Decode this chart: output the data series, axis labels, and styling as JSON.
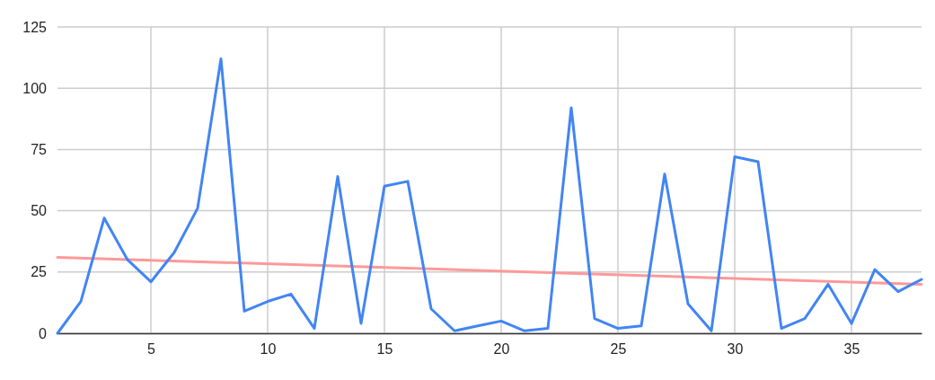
{
  "chart_data": {
    "type": "line",
    "x": [
      1,
      2,
      3,
      4,
      5,
      6,
      7,
      8,
      9,
      10,
      11,
      12,
      13,
      14,
      15,
      16,
      17,
      18,
      19,
      20,
      21,
      22,
      23,
      24,
      25,
      26,
      27,
      28,
      29,
      30,
      31,
      32,
      33,
      34,
      35,
      36,
      37,
      38
    ],
    "series": [
      {
        "color": "#4285f4",
        "values": [
          0,
          13,
          47,
          30,
          21,
          33,
          51,
          112,
          9,
          13,
          16,
          2,
          64,
          4,
          60,
          62,
          10,
          1,
          3,
          5,
          1,
          2,
          92,
          6,
          2,
          3,
          65,
          12,
          1,
          72,
          70,
          2,
          6,
          20,
          4,
          26,
          17,
          22
        ]
      },
      {
        "type": "line",
        "color": "#ff9999",
        "x": [
          1,
          38
        ],
        "values": [
          31,
          20
        ]
      }
    ],
    "xlim": [
      1,
      38
    ],
    "xticks": [
      5,
      10,
      15,
      20,
      25,
      30,
      35
    ],
    "ylim": [
      0,
      125
    ],
    "yticks": [
      0,
      25,
      50,
      75,
      100,
      125
    ],
    "grid": true,
    "marker": "none",
    "line_style": "solid"
  }
}
